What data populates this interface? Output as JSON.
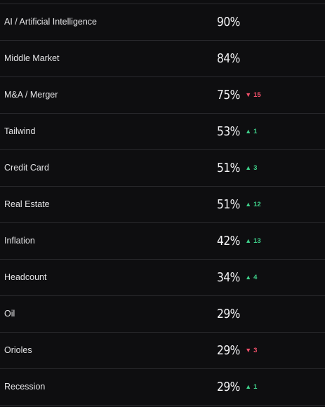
{
  "rows": [
    {
      "label": "AI / Artificial Intelligence",
      "pct": "90%",
      "direction": "",
      "arrow": "",
      "change": ""
    },
    {
      "label": "Middle Market",
      "pct": "84%",
      "direction": "",
      "arrow": "",
      "change": ""
    },
    {
      "label": "M&A / Merger",
      "pct": "75%",
      "direction": "down",
      "arrow": "▼",
      "change": "15"
    },
    {
      "label": "Tailwind",
      "pct": "53%",
      "direction": "up",
      "arrow": "▲",
      "change": "1"
    },
    {
      "label": "Credit Card",
      "pct": "51%",
      "direction": "up",
      "arrow": "▲",
      "change": "3"
    },
    {
      "label": "Real Estate",
      "pct": "51%",
      "direction": "up",
      "arrow": "▲",
      "change": "12"
    },
    {
      "label": "Inflation",
      "pct": "42%",
      "direction": "up",
      "arrow": "▲",
      "change": "13"
    },
    {
      "label": "Headcount",
      "pct": "34%",
      "direction": "up",
      "arrow": "▲",
      "change": "4"
    },
    {
      "label": "Oil",
      "pct": "29%",
      "direction": "",
      "arrow": "",
      "change": ""
    },
    {
      "label": "Orioles",
      "pct": "29%",
      "direction": "down",
      "arrow": "▼",
      "change": "3"
    },
    {
      "label": "Recession",
      "pct": "29%",
      "direction": "up",
      "arrow": "▲",
      "change": "1"
    }
  ],
  "colors": {
    "background": "#0e0e10",
    "up": "#3fd08a",
    "down": "#f0506a",
    "divider": "#2a2a2e"
  }
}
